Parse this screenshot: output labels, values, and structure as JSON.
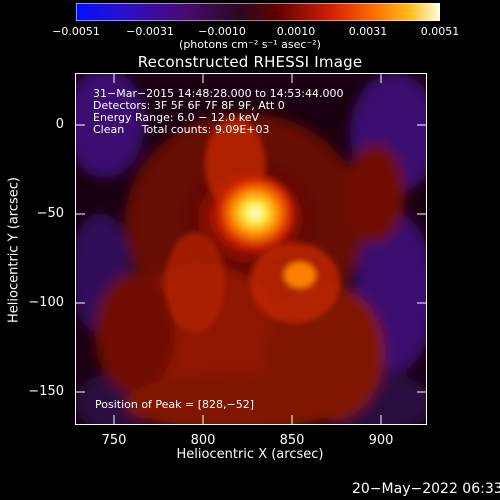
{
  "colorbar": {
    "ticks": [
      "−0.0051",
      "−0.0031",
      "−0.0010",
      "0.0010",
      "0.0031",
      "0.0051"
    ],
    "units": "(photons cm⁻² s⁻¹ asec⁻²)"
  },
  "title": "Reconstructed RHESSI Image",
  "info": {
    "time_range": "31−Mar−2015 14:48:28.000 to 14:53:44.000",
    "detectors": "Detectors: 3F 5F 6F 7F 8F 9F, Att 0",
    "energy": "Energy Range: 6.0 − 12.0 keV",
    "clean": "Clean     Total counts: 9.09E+03"
  },
  "peak_label": "Position of Peak = [828,−52]",
  "axes": {
    "xlabel": "Heliocentric X (arcsec)",
    "ylabel": "Heliocentric Y (arcsec)",
    "xticks": [
      "750",
      "800",
      "850",
      "900"
    ],
    "yticks": [
      "0",
      "−50",
      "−100",
      "−150"
    ]
  },
  "timestamp": "20−May−2022 06:33",
  "colors": {
    "background": "#000000",
    "text": "#ffffff"
  }
}
